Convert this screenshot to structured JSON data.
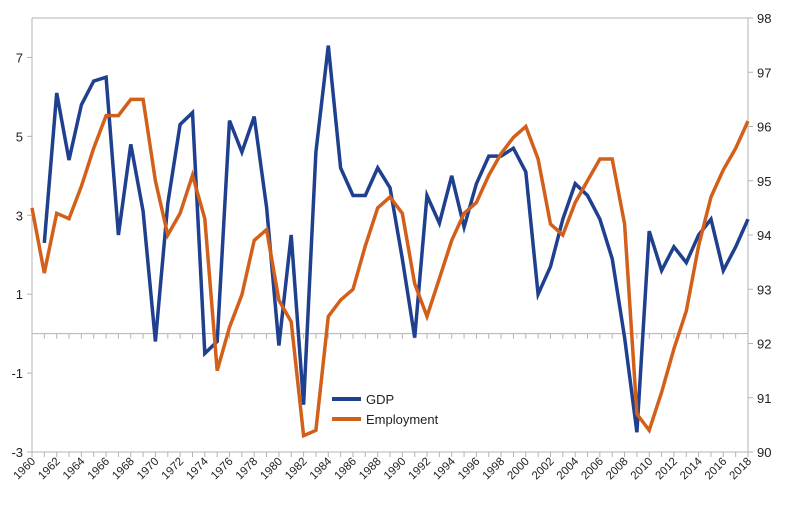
{
  "chart_data": {
    "type": "line",
    "title": "",
    "xlabel": "",
    "ylabel": "",
    "y2label": "",
    "x": [
      1960,
      1961,
      1962,
      1963,
      1964,
      1965,
      1966,
      1967,
      1968,
      1969,
      1970,
      1971,
      1972,
      1973,
      1974,
      1975,
      1976,
      1977,
      1978,
      1979,
      1980,
      1981,
      1982,
      1983,
      1984,
      1985,
      1986,
      1987,
      1988,
      1989,
      1990,
      1991,
      1992,
      1993,
      1994,
      1995,
      1996,
      1997,
      1998,
      1999,
      2000,
      2001,
      2002,
      2003,
      2004,
      2005,
      2006,
      2007,
      2008,
      2009,
      2010,
      2011,
      2012,
      2013,
      2014,
      2015,
      2016,
      2017,
      2018
    ],
    "xticks": [
      "1960",
      "1962",
      "1964",
      "1966",
      "1968",
      "1970",
      "1972",
      "1974",
      "1976",
      "1978",
      "1980",
      "1982",
      "1984",
      "1986",
      "1988",
      "1990",
      "1992",
      "1994",
      "1996",
      "1998",
      "2000",
      "2002",
      "2004",
      "2006",
      "2008",
      "2010",
      "2012",
      "2014",
      "2016",
      "2018"
    ],
    "ylim": [
      -3,
      8
    ],
    "yticks": [
      "7",
      "5",
      "3",
      "1",
      "-1",
      "-3"
    ],
    "y2lim": [
      90,
      98
    ],
    "y2ticks": [
      "98",
      "97",
      "96",
      "95",
      "94",
      "93",
      "92",
      "91",
      "90"
    ],
    "legend_position": "bottom-center",
    "grid": false,
    "series": [
      {
        "name": "GDP",
        "axis": "left",
        "color": "#1f3f8f",
        "values": [
          null,
          2.3,
          6.1,
          4.4,
          5.8,
          6.4,
          6.5,
          2.5,
          4.8,
          3.1,
          -0.2,
          3.3,
          5.3,
          5.6,
          -0.5,
          -0.2,
          5.4,
          4.6,
          5.5,
          3.2,
          -0.3,
          2.5,
          -1.8,
          4.6,
          7.3,
          4.2,
          3.5,
          3.5,
          4.2,
          3.7,
          1.9,
          -0.1,
          3.5,
          2.8,
          4.0,
          2.7,
          3.8,
          4.5,
          4.5,
          4.7,
          4.1,
          1.0,
          1.7,
          2.9,
          3.8,
          3.5,
          2.9,
          1.9,
          -0.1,
          -2.5,
          2.6,
          1.6,
          2.2,
          1.8,
          2.5,
          2.9,
          1.6,
          2.2,
          2.9
        ]
      },
      {
        "name": "Employment",
        "axis": "right",
        "color": "#d2601a",
        "values": [
          94.5,
          93.3,
          94.4,
          94.3,
          94.9,
          95.6,
          96.2,
          96.2,
          96.5,
          96.5,
          95.0,
          94.0,
          94.4,
          95.1,
          94.3,
          91.5,
          92.3,
          92.9,
          93.9,
          94.1,
          92.8,
          92.4,
          90.3,
          90.4,
          92.5,
          92.8,
          93.0,
          93.8,
          94.5,
          94.7,
          94.4,
          93.1,
          92.5,
          93.2,
          93.9,
          94.4,
          94.6,
          95.1,
          95.5,
          95.8,
          96.0,
          95.4,
          94.2,
          94.0,
          94.6,
          95.0,
          95.4,
          95.4,
          94.2,
          90.7,
          90.4,
          91.1,
          91.9,
          92.6,
          93.8,
          94.7,
          95.2,
          95.6,
          96.1
        ]
      }
    ]
  }
}
